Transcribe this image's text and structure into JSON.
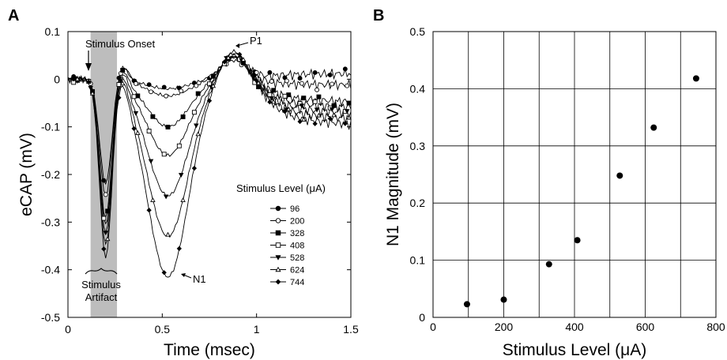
{
  "chart_data": [
    {
      "panel_label": "A",
      "type": "line",
      "xlabel": "Time (msec)",
      "ylabel": "eCAP (mV)",
      "xlim": [
        0,
        1.5
      ],
      "ylim": [
        -0.5,
        0.1
      ],
      "x_ticks": [
        "0",
        "0.5",
        "1",
        "1.5"
      ],
      "y_ticks": [
        "0.1",
        "0",
        "-0.1",
        "-0.2",
        "-0.3",
        "-0.4",
        "-0.5"
      ],
      "grid": false,
      "shaded_region": [
        0.12,
        0.26
      ],
      "annotations": {
        "onset": "Stimulus Onset",
        "artifact_line1": "Stimulus",
        "artifact_line2": "Artifact",
        "p1": "P1",
        "n1": "N1"
      },
      "legend_title": "Stimulus Level (μA)",
      "legend_position": "right",
      "series": [
        {
          "name": "96",
          "marker": "circle-filled",
          "trough": -0.22,
          "n1": -0.02,
          "p1": 0.045,
          "late": 0.01
        },
        {
          "name": "200",
          "marker": "circle-open",
          "trough": -0.25,
          "n1": -0.035,
          "p1": 0.04,
          "late": -0.01
        },
        {
          "name": "328",
          "marker": "square-filled",
          "trough": -0.3,
          "n1": -0.1,
          "p1": 0.05,
          "late": -0.04
        },
        {
          "name": "408",
          "marker": "square-open",
          "trough": -0.32,
          "n1": -0.16,
          "p1": 0.05,
          "late": -0.05
        },
        {
          "name": "528",
          "marker": "triangle-down",
          "trough": -0.34,
          "n1": -0.245,
          "p1": 0.055,
          "late": -0.06
        },
        {
          "name": "624",
          "marker": "triangle-open",
          "trough": -0.37,
          "n1": -0.33,
          "p1": 0.06,
          "late": -0.07
        },
        {
          "name": "744",
          "marker": "diamond-filled",
          "trough": -0.4,
          "n1": -0.415,
          "p1": 0.065,
          "late": -0.08
        }
      ]
    },
    {
      "panel_label": "B",
      "type": "scatter",
      "xlabel": "Stimulus Level (μA)",
      "ylabel": "N1 Magnitude (mV)",
      "xlim": [
        0,
        800
      ],
      "ylim": [
        0,
        0.5
      ],
      "x_ticks": [
        "0",
        "200",
        "400",
        "600",
        "800"
      ],
      "y_ticks": [
        "0.5",
        "0.4",
        "0.3",
        "0.2",
        "0.1",
        "0"
      ],
      "grid": true,
      "points": [
        {
          "x": 96,
          "y": 0.023
        },
        {
          "x": 200,
          "y": 0.031
        },
        {
          "x": 328,
          "y": 0.093
        },
        {
          "x": 408,
          "y": 0.135
        },
        {
          "x": 528,
          "y": 0.248
        },
        {
          "x": 624,
          "y": 0.332
        },
        {
          "x": 744,
          "y": 0.418
        }
      ]
    }
  ]
}
